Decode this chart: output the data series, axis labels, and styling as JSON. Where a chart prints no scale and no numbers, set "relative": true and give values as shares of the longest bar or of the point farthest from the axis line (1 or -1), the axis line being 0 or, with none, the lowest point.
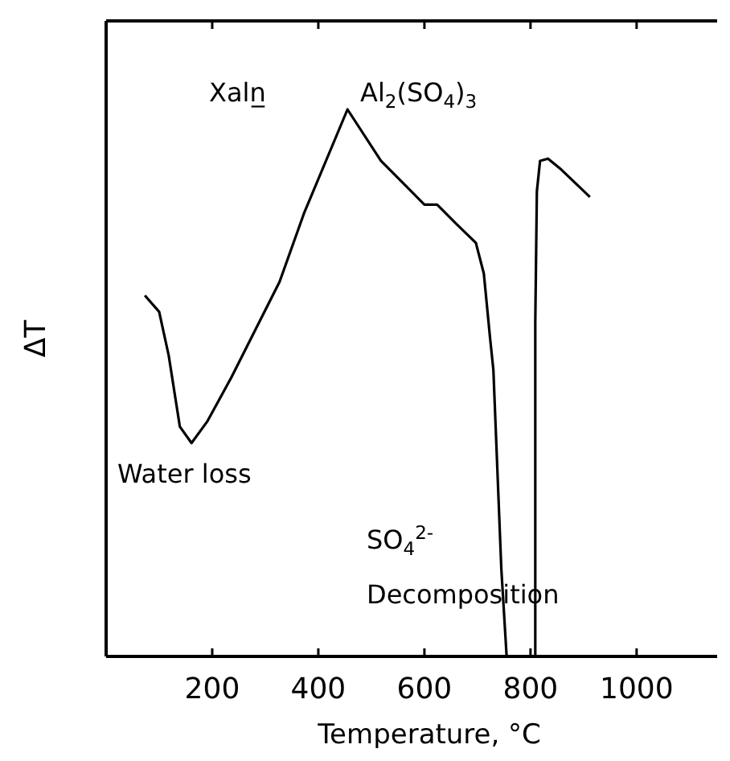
{
  "chart_data": {
    "type": "line",
    "relative": true,
    "xlabel": "Temperature, °C",
    "ylabel": "ΔT",
    "xlim": [
      0,
      1170
    ],
    "xticks": [
      200,
      400,
      600,
      800,
      1000
    ],
    "grid": false,
    "marker": "none",
    "line_style": "solid",
    "series": [
      {
        "color": "#000000",
        "x": [
          73,
          100,
          118,
          139,
          161,
          191,
          236,
          327,
          373,
          455,
          518,
          600,
          624,
          661,
          697,
          712,
          724,
          730,
          745,
          755,
          780,
          809,
          809,
          812,
          818,
          833,
          858,
          912
        ],
        "values": [
          0.66,
          0.63,
          0.55,
          0.42,
          0.39,
          0.43,
          0.51,
          0.685,
          0.81,
          1.0,
          0.906,
          0.826,
          0.826,
          0.79,
          0.756,
          0.7,
          0.58,
          0.524,
          0.16,
          0,
          null,
          0,
          0.61,
          0.85,
          0.906,
          0.91,
          0.89,
          0.84
        ]
      }
    ],
    "annotations": [
      "Xaln̲",
      "Al$_{2}$(SO$_{4}$)$_{3}$",
      "Water loss",
      "SO$_{4}$$^{2-}$",
      "Decomposition"
    ]
  }
}
